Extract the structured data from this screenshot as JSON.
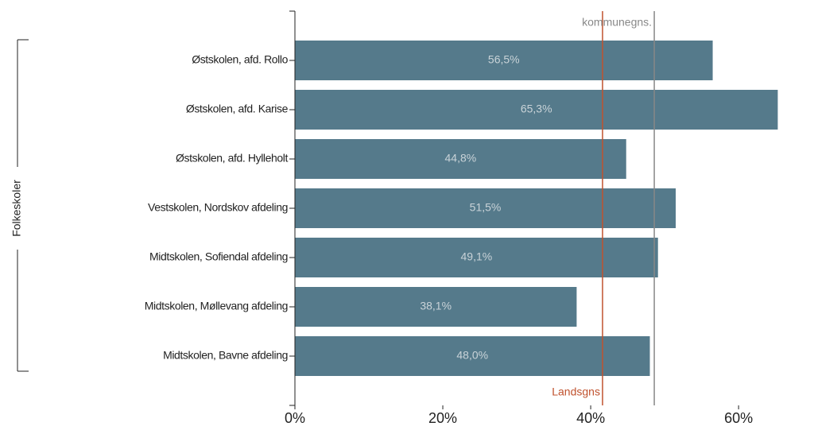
{
  "chart_data": {
    "type": "bar",
    "orientation": "horizontal",
    "group_label": "Folkeskoler",
    "categories": [
      "Østskolen, afd. Rollo",
      "Østskolen, afd. Karise",
      "Østskolen, afd. Hylleholt",
      "Vestskolen, Nordskov afdeling",
      "Midtskolen, Sofiendal afdeling",
      "Midtskolen, Møllevang afdeling",
      "Midtskolen, Bavne afdeling"
    ],
    "values": [
      56.5,
      65.3,
      44.8,
      51.5,
      49.1,
      38.1,
      48.0
    ],
    "value_labels": [
      "56,5%",
      "65,3%",
      "44,8%",
      "51,5%",
      "49,1%",
      "38,1%",
      "48,0%"
    ],
    "color": "#557a8b",
    "xlim": [
      0,
      70.2
    ],
    "xticks": [
      {
        "value": 0,
        "label": "0%"
      },
      {
        "value": 20,
        "label": "20%"
      },
      {
        "value": 40,
        "label": "40%"
      },
      {
        "value": 60,
        "label": "60%"
      }
    ],
    "reference_lines": [
      {
        "name": "Landsgns",
        "value": 41.6,
        "color": "#c0522e",
        "label_position": "bottom"
      },
      {
        "name": "kommunegns.",
        "value": 48.6,
        "color": "#888888",
        "label_position": "top"
      }
    ]
  }
}
